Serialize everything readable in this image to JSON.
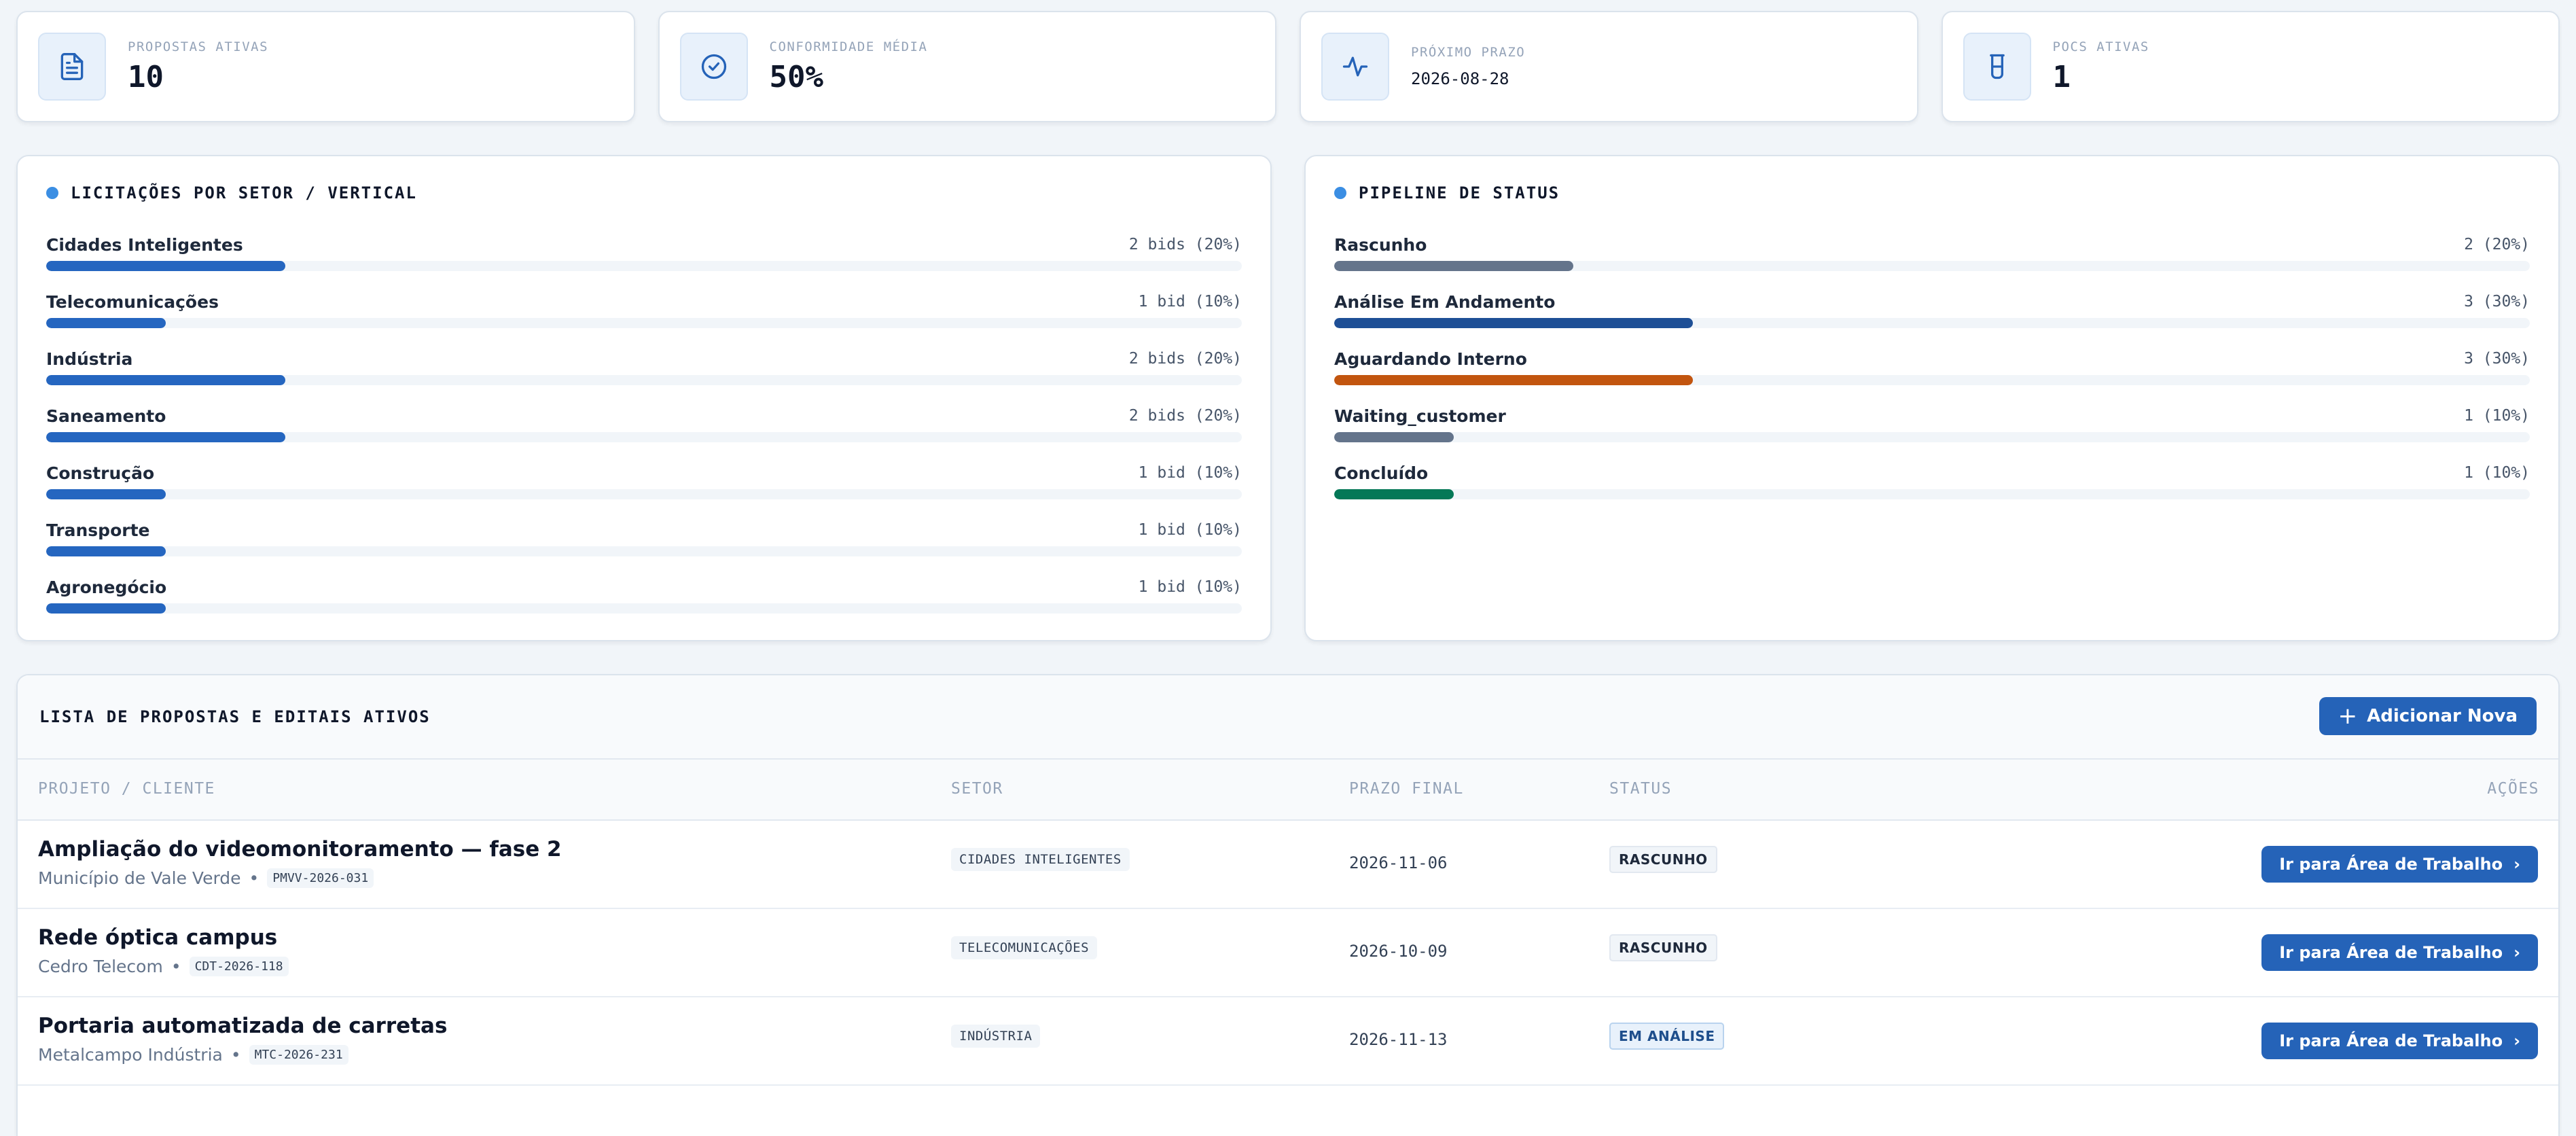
{
  "kpis": [
    {
      "label": "PROPOSTAS ATIVAS",
      "value": "10",
      "icon": "document-icon"
    },
    {
      "label": "CONFORMIDADE MÉDIA",
      "value": "50%",
      "icon": "check-circle-icon"
    },
    {
      "label": "PRÓXIMO PRAZO",
      "value": "2026-08-28",
      "icon": "activity-icon"
    },
    {
      "label": "POCS ATIVAS",
      "value": "1",
      "icon": "beaker-icon"
    }
  ],
  "sector_panel": {
    "title": "LICITAÇÕES POR SETOR / VERTICAL",
    "items": [
      {
        "label": "Cidades Inteligentes",
        "count": "2 bids (20%)",
        "share": 0.2
      },
      {
        "label": "Telecomunicações",
        "count": "1 bid (10%)",
        "share": 0.1
      },
      {
        "label": "Indústria",
        "count": "2 bids (20%)",
        "share": 0.2
      },
      {
        "label": "Saneamento",
        "count": "2 bids (20%)",
        "share": 0.2
      },
      {
        "label": "Construção",
        "count": "1 bid (10%)",
        "share": 0.1
      },
      {
        "label": "Transporte",
        "count": "1 bid (10%)",
        "share": 0.1
      },
      {
        "label": "Agronegócio",
        "count": "1 bid (10%)",
        "share": 0.1
      }
    ],
    "bar_color": "#2566c0"
  },
  "status_panel": {
    "title": "PIPELINE DE STATUS",
    "items": [
      {
        "label": "Rascunho",
        "count": "2 (20%)",
        "share": 0.2,
        "color": "#64748b"
      },
      {
        "label": "Análise Em Andamento",
        "count": "3 (30%)",
        "share": 0.3,
        "color": "#1e4f96"
      },
      {
        "label": "Aguardando Interno",
        "count": "3 (30%)",
        "share": 0.3,
        "color": "#c2550f"
      },
      {
        "label": "Waiting_customer",
        "count": "1 (10%)",
        "share": 0.1,
        "color": "#64748b"
      },
      {
        "label": "Concluído",
        "count": "1 (10%)",
        "share": 0.1,
        "color": "#047857"
      }
    ]
  },
  "table": {
    "title": "LISTA DE PROPOSTAS E EDITAIS ATIVOS",
    "add_label": "Adicionar Nova",
    "columns": {
      "project": "PROJETO / CLIENTE",
      "sector": "SETOR",
      "deadline": "PRAZO FINAL",
      "status": "STATUS",
      "actions": "AÇÕES"
    },
    "action_label": "Ir para Área de Trabalho",
    "rows": [
      {
        "name": "Ampliação do videomonitoramento — fase 2",
        "client": "Município de Vale Verde",
        "code": "PMVV-2026-031",
        "sector": "CIDADES INTELIGENTES",
        "deadline": "2026-11-06",
        "status": "RASCUNHO",
        "status_kind": "draft"
      },
      {
        "name": "Rede óptica campus",
        "client": "Cedro Telecom",
        "code": "CDT-2026-118",
        "sector": "TELECOMUNICAÇÕES",
        "deadline": "2026-10-09",
        "status": "RASCUNHO",
        "status_kind": "draft"
      },
      {
        "name": "Portaria automatizada de carretas",
        "client": "Metalcampo Indústria",
        "code": "MTC-2026-231",
        "sector": "INDÚSTRIA",
        "deadline": "2026-11-13",
        "status": "EM ANÁLISE",
        "status_kind": "analysis"
      }
    ],
    "separator": "•"
  }
}
